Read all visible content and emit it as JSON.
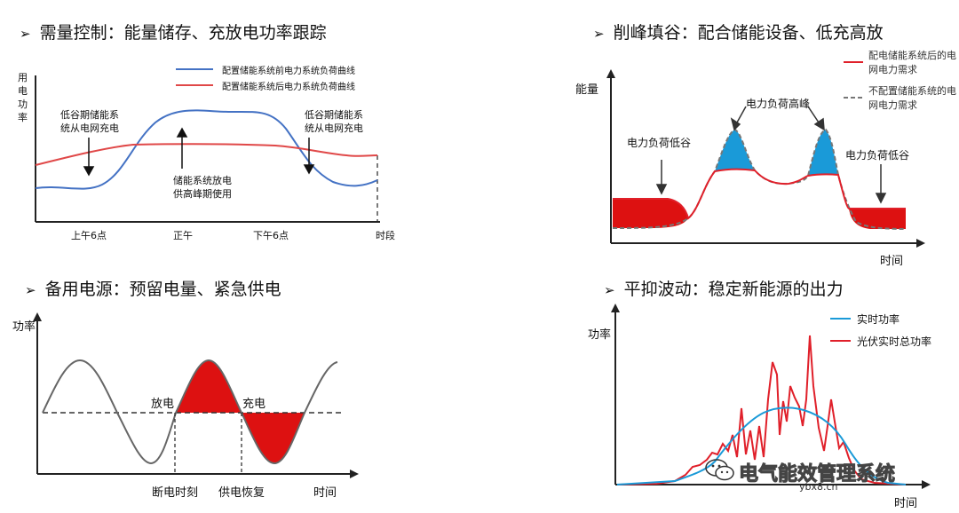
{
  "panel1": {
    "title": "需量控制：能量储存、充放电功率跟踪",
    "y_label": "用电功率",
    "legend": [
      "配置储能系统前电力系统负荷曲线",
      "配置储能系统后电力系统负荷曲线"
    ],
    "x_ticks": [
      "上午6点",
      "正午",
      "下午6点",
      "时段"
    ],
    "annotations": [
      "低谷期储能系统从电网充电",
      "储能系统放电供高峰期使用",
      "低谷期储能系统从电网充电"
    ],
    "colors": {
      "before": "#4472c4",
      "after": "#e04848"
    }
  },
  "panel2": {
    "title": "削峰填谷：配合储能设备、低充高放",
    "y_label": "能量",
    "x_label": "时间",
    "legend": [
      "配电储能系统后的电网电力需求",
      "不配置储能系统的电网电力需求"
    ],
    "annotations": [
      "电力负荷高峰",
      "电力负荷低谷",
      "电力负荷低谷"
    ],
    "colors": {
      "with": "#e0202a",
      "fill_valley": "#dd1111",
      "fill_peak": "#1a9ad8",
      "without": "#777777"
    }
  },
  "panel3": {
    "title": "备用电源：预留电量、紧急供电",
    "y_label": "功率",
    "x_label": "时间",
    "labels": [
      "放电",
      "充电"
    ],
    "x_marks": [
      "断电时刻",
      "供电恢复"
    ],
    "colors": {
      "fill": "#dd1111",
      "curve": "#666666"
    }
  },
  "panel4": {
    "title": "平抑波动：稳定新能源的出力",
    "y_label": "功率",
    "x_label": "时间",
    "legend": [
      "实时功率",
      "光伏实时总功率"
    ],
    "colors": {
      "realtime": "#1a9ad8",
      "pv": "#e0202a"
    }
  },
  "watermark": {
    "text": "电气能效管理系统",
    "url": "ybx8.cn"
  },
  "bullet_symbol": "➢"
}
